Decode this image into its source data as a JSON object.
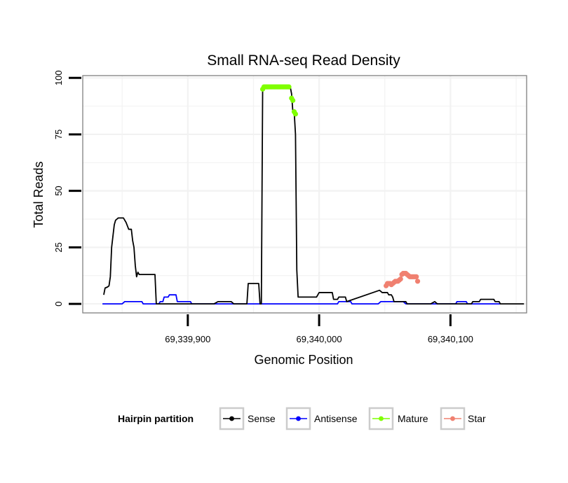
{
  "chart_data": {
    "type": "line",
    "title": "Small RNA-seq Read Density",
    "xlabel": "Genomic Position",
    "ylabel": "Total Reads",
    "xlim": [
      69339820,
      69340158
    ],
    "ylim": [
      -4,
      101
    ],
    "x_ticks": [
      69339900,
      69340000,
      69340100
    ],
    "x_tick_labels": [
      "69,339,900",
      "69,340,000",
      "69,340,100"
    ],
    "y_ticks": [
      0,
      25,
      50,
      75,
      100
    ],
    "y_tick_labels": [
      "0",
      "25",
      "50",
      "75",
      "100"
    ],
    "grid": true,
    "legend": {
      "title": "Hairpin partition",
      "position": "bottom",
      "entries": [
        "Sense",
        "Antisense",
        "Mature",
        "Star"
      ]
    },
    "series": [
      {
        "name": "Sense",
        "color": "#000000",
        "style": "line",
        "points": [
          [
            69339836,
            4
          ],
          [
            69339837,
            7
          ],
          [
            69339839,
            7.5
          ],
          [
            69339840,
            8
          ],
          [
            69339841,
            12
          ],
          [
            69339842,
            25
          ],
          [
            69339843,
            30
          ],
          [
            69339844,
            35
          ],
          [
            69339845,
            37
          ],
          [
            69339847,
            38
          ],
          [
            69339851,
            38
          ],
          [
            69339853,
            36
          ],
          [
            69339855,
            33
          ],
          [
            69339857,
            33
          ],
          [
            69339858,
            28
          ],
          [
            69339859,
            25
          ],
          [
            69339860,
            17
          ],
          [
            69339861,
            12
          ],
          [
            69339862,
            14
          ],
          [
            69339863,
            13
          ],
          [
            69339875,
            13
          ],
          [
            69339876,
            0
          ],
          [
            69339880,
            0
          ],
          [
            69339900,
            0
          ],
          [
            69339920,
            0
          ],
          [
            69339923,
            1
          ],
          [
            69339933,
            1
          ],
          [
            69339935,
            0
          ],
          [
            69339945,
            0
          ],
          [
            69339946,
            9
          ],
          [
            69339954,
            9
          ],
          [
            69339955,
            0
          ],
          [
            69339956,
            0
          ],
          [
            69339957,
            96
          ],
          [
            69339962,
            96
          ],
          [
            69339972,
            96
          ],
          [
            69339978,
            96
          ],
          [
            69339979,
            93
          ],
          [
            69339980,
            85
          ],
          [
            69339981,
            85
          ],
          [
            69339982,
            75
          ],
          [
            69339983,
            15
          ],
          [
            69339984,
            3
          ],
          [
            69339990,
            3
          ],
          [
            69339998,
            3
          ],
          [
            69340000,
            5
          ],
          [
            69340010,
            5
          ],
          [
            69340011,
            2
          ],
          [
            69340014,
            2
          ],
          [
            69340015,
            3
          ],
          [
            69340020,
            3
          ],
          [
            69340021,
            1
          ],
          [
            69340046,
            6
          ],
          [
            69340048,
            5
          ],
          [
            69340052,
            5
          ],
          [
            69340053,
            4
          ],
          [
            69340055,
            4
          ],
          [
            69340056,
            3
          ],
          [
            69340057,
            1
          ],
          [
            69340066,
            1
          ],
          [
            69340067,
            0
          ],
          [
            69340085,
            0
          ],
          [
            69340088,
            1
          ],
          [
            69340090,
            0
          ],
          [
            69340116,
            0
          ],
          [
            69340117,
            1
          ],
          [
            69340122,
            1
          ],
          [
            69340123,
            2
          ],
          [
            69340133,
            2
          ],
          [
            69340134,
            1
          ],
          [
            69340137,
            1
          ],
          [
            69340138,
            0
          ],
          [
            69340156,
            0
          ]
        ]
      },
      {
        "name": "Antisense",
        "color": "#0000ff",
        "style": "line",
        "points": [
          [
            69339835,
            0
          ],
          [
            69339850,
            0
          ],
          [
            69339852,
            1
          ],
          [
            69339865,
            1
          ],
          [
            69339866,
            0
          ],
          [
            69339878,
            0
          ],
          [
            69339879,
            1
          ],
          [
            69339881,
            1
          ],
          [
            69339882,
            3
          ],
          [
            69339885,
            3
          ],
          [
            69339886,
            4
          ],
          [
            69339891,
            4
          ],
          [
            69339892,
            1
          ],
          [
            69339902,
            1
          ],
          [
            69339903,
            0
          ],
          [
            69339955,
            0
          ],
          [
            69339965,
            0
          ],
          [
            69340002,
            0
          ],
          [
            69340014,
            0
          ],
          [
            69340015,
            1
          ],
          [
            69340024,
            1
          ],
          [
            69340025,
            0
          ],
          [
            69340045,
            0
          ],
          [
            69340047,
            1
          ],
          [
            69340064,
            1
          ],
          [
            69340066,
            0
          ],
          [
            69340096,
            0
          ],
          [
            69340104,
            0
          ],
          [
            69340105,
            1
          ],
          [
            69340112,
            1
          ],
          [
            69340113,
            0
          ],
          [
            69340136,
            0
          ],
          [
            69340138,
            0
          ]
        ]
      },
      {
        "name": "Mature",
        "color": "#7fff00",
        "style": "points",
        "points": [
          [
            69339957,
            95
          ],
          [
            69339958,
            96
          ],
          [
            69339959,
            96
          ],
          [
            69339960,
            96
          ],
          [
            69339961,
            96
          ],
          [
            69339962,
            96
          ],
          [
            69339963,
            96
          ],
          [
            69339964,
            96
          ],
          [
            69339965,
            96
          ],
          [
            69339966,
            96
          ],
          [
            69339967,
            96
          ],
          [
            69339968,
            96
          ],
          [
            69339969,
            96
          ],
          [
            69339970,
            96
          ],
          [
            69339971,
            96
          ],
          [
            69339972,
            96
          ],
          [
            69339973,
            96
          ],
          [
            69339974,
            96
          ],
          [
            69339975,
            96
          ],
          [
            69339976,
            96
          ],
          [
            69339977,
            96
          ],
          [
            69339979,
            91
          ],
          [
            69339980,
            90
          ],
          [
            69339981,
            85
          ],
          [
            69339982,
            84
          ]
        ]
      },
      {
        "name": "Star",
        "color": "#f08070",
        "style": "points",
        "points": [
          [
            69340051,
            8
          ],
          [
            69340052,
            9
          ],
          [
            69340053,
            9
          ],
          [
            69340054,
            9
          ],
          [
            69340055,
            8.5
          ],
          [
            69340056,
            9
          ],
          [
            69340057,
            9.5
          ],
          [
            69340058,
            10
          ],
          [
            69340059,
            10
          ],
          [
            69340060,
            10
          ],
          [
            69340061,
            10.5
          ],
          [
            69340062,
            11
          ],
          [
            69340063,
            13
          ],
          [
            69340064,
            13.5
          ],
          [
            69340065,
            13.5
          ],
          [
            69340066,
            13.5
          ],
          [
            69340067,
            13
          ],
          [
            69340068,
            12.5
          ],
          [
            69340069,
            12
          ],
          [
            69340070,
            12
          ],
          [
            69340071,
            12
          ],
          [
            69340072,
            12
          ],
          [
            69340073,
            12
          ],
          [
            69340074,
            12
          ],
          [
            69340075,
            10
          ]
        ]
      }
    ]
  }
}
